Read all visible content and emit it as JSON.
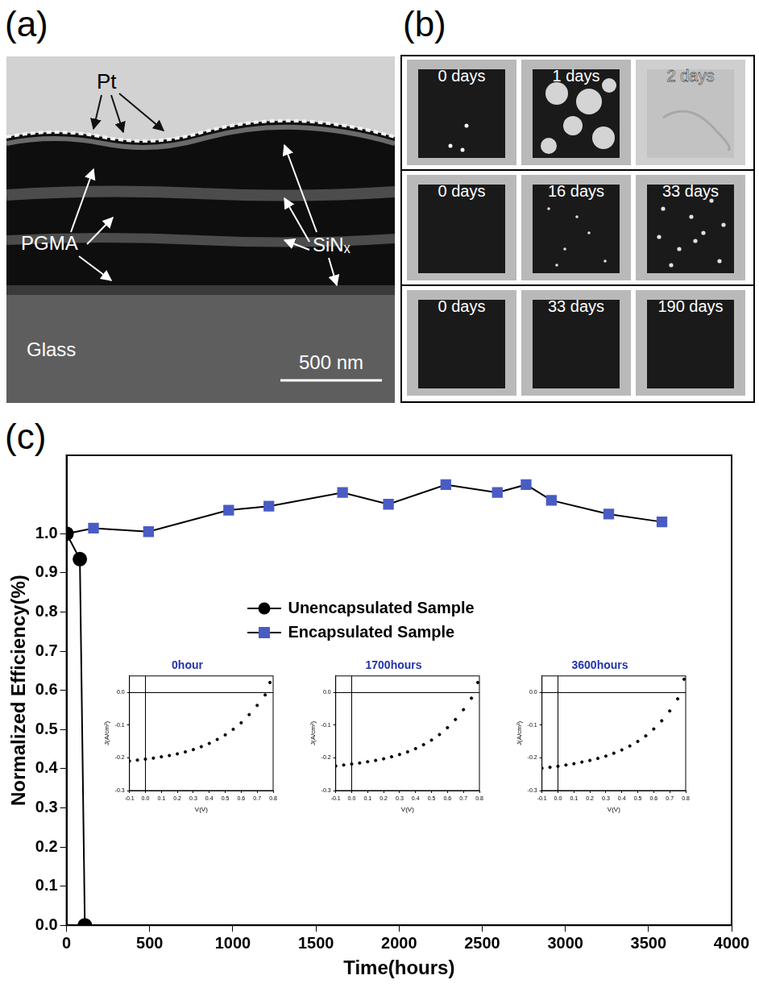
{
  "panel_a": {
    "letter": "(a)",
    "pt": "Pt",
    "pgma": "PGMA",
    "sinx": "SiNₓ",
    "glass": "Glass",
    "scale_bar": "500 nm"
  },
  "panel_b": {
    "letter": "(b)",
    "tiles": [
      [
        "0 days",
        "1 days",
        "2 days"
      ],
      [
        "0 days",
        "16 days",
        "33 days"
      ],
      [
        "0 days",
        "33 days",
        "190 days"
      ]
    ]
  },
  "chart_data": [
    {
      "letter": "(c)",
      "type": "line",
      "x_label": "Time(hours)",
      "y_label": "Normalized Efficiency(%)",
      "xlim": [
        0,
        4000
      ],
      "xticks": [
        0,
        500,
        1000,
        1500,
        2000,
        2500,
        3000,
        3500,
        4000
      ],
      "ylim": [
        0,
        1.2
      ],
      "yticks": [
        {
          "value": 0,
          "label": "0.0"
        },
        0.1,
        0.2,
        0.3,
        0.4,
        0.5,
        0.6,
        0.7,
        0.8,
        0.9,
        {
          "value": 1,
          "label": "1.0"
        }
      ],
      "grid": false,
      "legend": "upper center",
      "series": [
        {
          "name": "Unencapsulated Sample",
          "color": "#000000",
          "marker": "circle",
          "line_style": "solid",
          "x": [
            0,
            80,
            110
          ],
          "values": [
            1.0,
            0.935,
            0.0
          ]
        },
        {
          "name": "Encapsulated Sample",
          "color": "#4a5cc4",
          "marker": "square",
          "line_style": "solid",
          "x": [
            0,
            162,
            493,
            975,
            1217,
            1660,
            1936,
            2281,
            2591,
            2764,
            2916,
            3261,
            3581
          ],
          "values": [
            1.0,
            1.014,
            1.005,
            1.06,
            1.07,
            1.105,
            1.075,
            1.125,
            1.105,
            1.125,
            1.085,
            1.05,
            1.03
          ]
        }
      ]
    },
    {
      "type": "scatter",
      "title": "0hour",
      "x_label": "V(V)",
      "y_label": "J(A/cm²)",
      "xlim": [
        -0.1,
        0.8
      ],
      "xticks": [
        -0.1,
        {
          "value": 0,
          "label": "0.0"
        },
        0.1,
        0.2,
        0.3,
        0.4,
        0.5,
        0.6,
        0.7,
        0.8
      ],
      "ylim": [
        -0.3,
        0.05
      ],
      "yticks": [
        -0.3,
        -0.2,
        -0.1,
        {
          "value": 0,
          "label": "0.0"
        }
      ],
      "grid": false,
      "series": [
        {
          "color": "#000000",
          "marker": "circle",
          "line_style": "none",
          "x": [
            -0.1,
            -0.05,
            0,
            0.05,
            0.1,
            0.15,
            0.2,
            0.25,
            0.3,
            0.35,
            0.4,
            0.45,
            0.5,
            0.55,
            0.6,
            0.65,
            0.7,
            0.75,
            0.78
          ],
          "values": [
            -0.21,
            -0.207,
            -0.204,
            -0.201,
            -0.197,
            -0.193,
            -0.188,
            -0.182,
            -0.175,
            -0.166,
            -0.156,
            -0.144,
            -0.13,
            -0.113,
            -0.093,
            -0.068,
            -0.04,
            -0.008,
            0.03
          ]
        }
      ]
    },
    {
      "type": "scatter",
      "title": "1700hours",
      "x_label": "V(V)",
      "y_label": "J(A/cm²)",
      "xlim": [
        -0.1,
        0.8
      ],
      "xticks": [
        -0.1,
        {
          "value": 0,
          "label": "0.0"
        },
        0.1,
        0.2,
        0.3,
        0.4,
        0.5,
        0.6,
        0.7,
        0.8
      ],
      "ylim": [
        -0.3,
        0.05
      ],
      "yticks": [
        -0.3,
        -0.2,
        -0.1,
        {
          "value": 0,
          "label": "0.0"
        }
      ],
      "grid": false,
      "series": [
        {
          "color": "#000000",
          "marker": "circle",
          "line_style": "none",
          "x": [
            -0.1,
            -0.05,
            0,
            0.05,
            0.1,
            0.15,
            0.2,
            0.25,
            0.3,
            0.35,
            0.4,
            0.45,
            0.5,
            0.55,
            0.6,
            0.65,
            0.7,
            0.75,
            0.79
          ],
          "values": [
            -0.225,
            -0.222,
            -0.219,
            -0.216,
            -0.212,
            -0.208,
            -0.203,
            -0.197,
            -0.19,
            -0.182,
            -0.172,
            -0.16,
            -0.146,
            -0.129,
            -0.108,
            -0.083,
            -0.053,
            -0.018,
            0.03
          ]
        }
      ]
    },
    {
      "type": "scatter",
      "title": "3600hours",
      "x_label": "V(V)",
      "y_label": "J(A/cm²)",
      "xlim": [
        -0.1,
        0.8
      ],
      "xticks": [
        -0.1,
        {
          "value": 0,
          "label": "0.0"
        },
        0.1,
        0.2,
        0.3,
        0.4,
        0.5,
        0.6,
        0.7,
        0.8
      ],
      "ylim": [
        -0.3,
        0.05
      ],
      "yticks": [
        -0.3,
        -0.2,
        -0.1,
        {
          "value": 0,
          "label": "0.0"
        }
      ],
      "grid": false,
      "series": [
        {
          "color": "#000000",
          "marker": "circle",
          "line_style": "none",
          "x": [
            -0.1,
            -0.05,
            0,
            0.05,
            0.1,
            0.15,
            0.2,
            0.25,
            0.3,
            0.35,
            0.4,
            0.45,
            0.5,
            0.55,
            0.6,
            0.65,
            0.7,
            0.75,
            0.79
          ],
          "values": [
            -0.232,
            -0.229,
            -0.226,
            -0.222,
            -0.218,
            -0.213,
            -0.208,
            -0.202,
            -0.195,
            -0.186,
            -0.176,
            -0.164,
            -0.15,
            -0.133,
            -0.112,
            -0.087,
            -0.057,
            -0.02,
            0.04
          ]
        }
      ]
    }
  ]
}
